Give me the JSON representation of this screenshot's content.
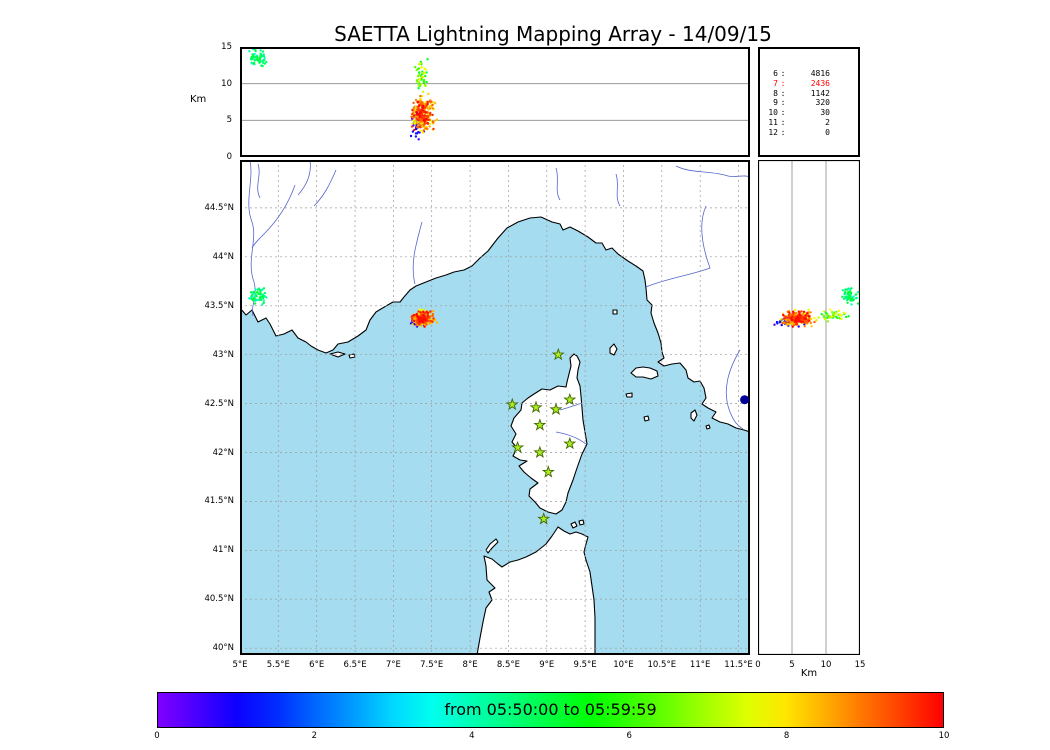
{
  "colors": {
    "sea": "#a6dcef",
    "land": "#ffffff",
    "coast": "#000000",
    "river": "#5566cc",
    "grid": "#9a9a9a",
    "panel_grid": "#8a8a8a",
    "star_fill": "#aaee22",
    "star_stroke": "#446600",
    "highlight_count": "#ff0000",
    "marker_dot": "#000099"
  },
  "chart_data": {
    "type": "scatter",
    "title": "SAETTA Lightning Mapping Array - 14/09/15",
    "colormap": "rainbow",
    "colorbar": {
      "label": "from 05:50:00 to 05:59:59",
      "range": [
        0,
        10
      ],
      "tick_values": [
        0,
        2,
        4,
        6,
        8,
        10
      ],
      "tick_labels": [
        "0",
        "2",
        "4",
        "6",
        "8",
        "10"
      ]
    },
    "map": {
      "lon_range": [
        5,
        11.65
      ],
      "lat_range": [
        39.93,
        44.99
      ],
      "lon_tick_values": [
        5,
        5.5,
        6,
        6.5,
        7,
        7.5,
        8,
        8.5,
        9,
        9.5,
        10,
        10.5,
        11,
        11.5
      ],
      "lon_tick_labels": [
        "5°E",
        "5.5°E",
        "6°E",
        "6.5°E",
        "7°E",
        "7.5°E",
        "8°E",
        "8.5°E",
        "9°E",
        "9.5°E",
        "10°E",
        "10.5°E",
        "11°E",
        "11.5°E"
      ],
      "lat_tick_values": [
        44.5,
        44,
        43.5,
        43,
        42.5,
        42,
        41.5,
        41,
        40.5,
        40
      ],
      "lat_tick_labels": [
        "44.5°N",
        "44°N",
        "43.5°N",
        "43°N",
        "42.5°N",
        "42°N",
        "41.5°N",
        "41°N",
        "40.5°N",
        "40°N"
      ]
    },
    "altitude_axis": {
      "label": "Km",
      "range_km": [
        0,
        15
      ],
      "top_tick_values": [
        15,
        10,
        5,
        0
      ],
      "top_tick_labels": [
        "15",
        "10",
        "5",
        "0"
      ],
      "right_tick_values": [
        0,
        5,
        10,
        15
      ],
      "right_tick_labels": [
        "0",
        "5",
        "10",
        "15"
      ],
      "grid_km": [
        5,
        10
      ]
    },
    "station_counts": {
      "rows": [
        {
          "stations": "6",
          "sources": "4816",
          "highlight": false
        },
        {
          "stations": "7",
          "sources": "2436",
          "highlight": true
        },
        {
          "stations": "8",
          "sources": "1142",
          "highlight": false
        },
        {
          "stations": "9",
          "sources": "320",
          "highlight": false
        },
        {
          "stations": "10",
          "sources": "30",
          "highlight": false
        },
        {
          "stations": "11",
          "sources": "2",
          "highlight": false
        },
        {
          "stations": "12",
          "sources": "0",
          "highlight": false
        }
      ]
    },
    "lma_stations_lonlat": [
      [
        9.15,
        43.0
      ],
      [
        8.55,
        42.49
      ],
      [
        8.86,
        42.46
      ],
      [
        9.12,
        42.44
      ],
      [
        9.3,
        42.54
      ],
      [
        8.91,
        42.28
      ],
      [
        8.62,
        42.05
      ],
      [
        9.3,
        42.09
      ],
      [
        8.91,
        42.0
      ],
      [
        9.02,
        41.8
      ],
      [
        8.96,
        41.32
      ]
    ],
    "offshore_marker": {
      "lon": 11.58,
      "lat": 42.54
    },
    "source_clusters": [
      {
        "name": "nice-offshore-storm-late",
        "lon": 7.38,
        "lat": 43.37,
        "lon_spread": 0.1,
        "lat_spread": 0.05,
        "alt_km": 5.8,
        "alt_spread_km": 1.6,
        "count": 280,
        "time_min": 7.5,
        "time_max": 10.0
      },
      {
        "name": "nice-offshore-storm-mid-high",
        "lon": 7.36,
        "lat": 43.4,
        "lon_spread": 0.06,
        "lat_spread": 0.04,
        "alt_km": 11.0,
        "alt_spread_km": 1.6,
        "count": 45,
        "time_min": 4.5,
        "time_max": 8.0
      },
      {
        "name": "nice-offshore-storm-early-low",
        "lon": 7.31,
        "lat": 43.33,
        "lon_spread": 0.05,
        "lat_spread": 0.03,
        "alt_km": 4.6,
        "alt_spread_km": 1.4,
        "count": 40,
        "time_min": 0.0,
        "time_max": 1.5
      },
      {
        "name": "marseille-high-cluster",
        "lon": 5.22,
        "lat": 43.6,
        "lon_spread": 0.09,
        "lat_spread": 0.06,
        "alt_km": 13.4,
        "alt_spread_km": 0.9,
        "count": 55,
        "time_min": 3.5,
        "time_max": 5.2
      }
    ]
  }
}
